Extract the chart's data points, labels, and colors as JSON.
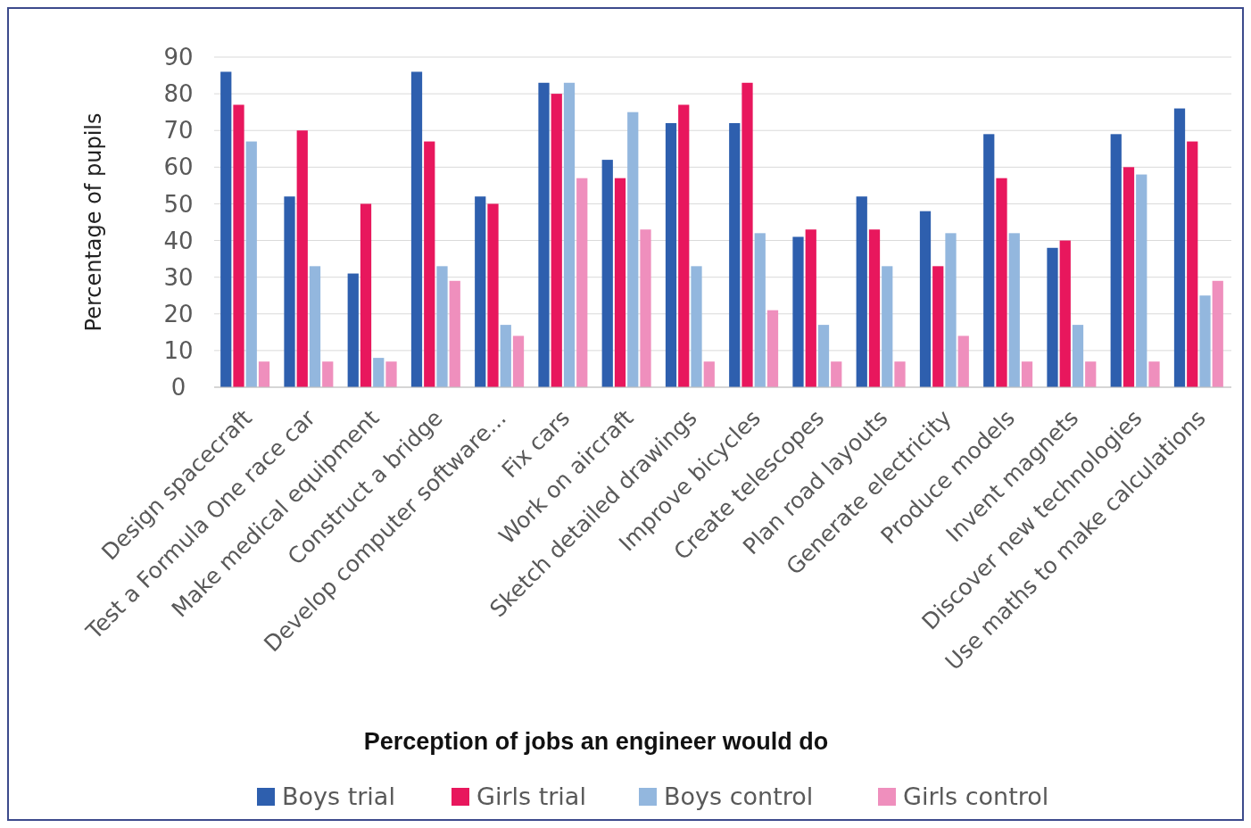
{
  "chart_data": {
    "type": "bar",
    "xlabel": "Perception of jobs an engineer would do",
    "ylabel": "Percentage of pupils",
    "categories": [
      "Design spacecraft",
      "Test a Formula One race car",
      "Make medical equipment",
      "Construct a bridge",
      "Develop computer software...",
      "Fix cars",
      "Work on aircraft",
      "Sketch detailed drawings",
      "Improve bicycles",
      "Create telescopes",
      "Plan road layouts",
      "Generate electricity",
      "Produce models",
      "Invent magnets",
      "Discover new technologies",
      "Use maths to make calculations"
    ],
    "series": [
      {
        "name": "Boys trial",
        "color": "#2e5fae",
        "values": [
          86,
          52,
          31,
          86,
          52,
          83,
          62,
          72,
          72,
          41,
          52,
          48,
          69,
          38,
          69,
          76
        ]
      },
      {
        "name": "Girls trial",
        "color": "#e8175d",
        "values": [
          77,
          70,
          50,
          67,
          50,
          80,
          57,
          77,
          83,
          43,
          43,
          33,
          57,
          40,
          60,
          67
        ]
      },
      {
        "name": "Boys control",
        "color": "#93b7de",
        "values": [
          67,
          33,
          8,
          33,
          17,
          83,
          75,
          33,
          42,
          17,
          33,
          42,
          42,
          17,
          58,
          25
        ]
      },
      {
        "name": "Girls control",
        "color": "#ef8fbd",
        "values": [
          7,
          7,
          7,
          29,
          14,
          57,
          43,
          7,
          21,
          7,
          7,
          14,
          7,
          7,
          7,
          29
        ]
      }
    ],
    "ylim": [
      0,
      90
    ],
    "yticks": [
      0,
      10,
      20,
      30,
      40,
      50,
      60,
      70,
      80,
      90
    ],
    "grid": "y",
    "legend": "bottom"
  }
}
